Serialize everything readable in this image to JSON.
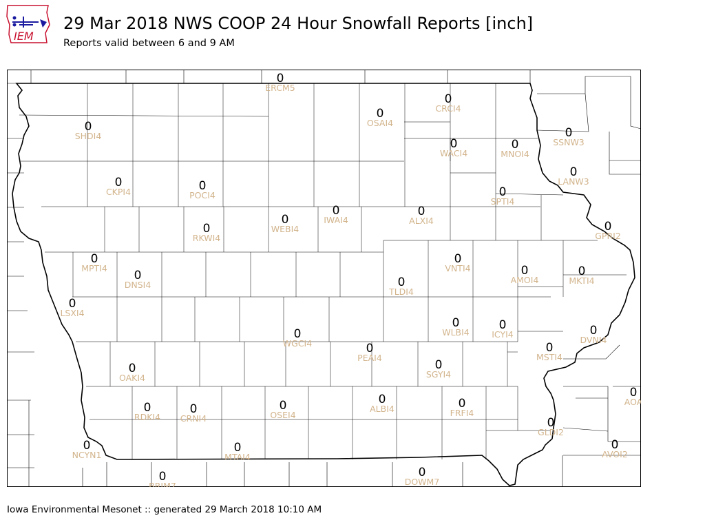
{
  "header": {
    "title": "29 Mar 2018 NWS COOP 24 Hour Snowfall Reports [inch]",
    "subtitle": "Reports valid between 6 and 9 AM"
  },
  "logo": {
    "text": "IEM"
  },
  "footer": {
    "text": "Iowa Environmental Mesonet :: generated 29 March 2018 10:10 AM"
  },
  "colors": {
    "value": "#000000",
    "station_label": "#d2b48c",
    "county_line": "#000000"
  },
  "stations": [
    {
      "id": "ERCM5",
      "value": "0"
    },
    {
      "id": "CRCI4",
      "value": "0"
    },
    {
      "id": "OSAI4",
      "value": "0"
    },
    {
      "id": "SHDI4",
      "value": "0"
    },
    {
      "id": "WACI4",
      "value": "0"
    },
    {
      "id": "MNOI4",
      "value": "0"
    },
    {
      "id": "SSNW3",
      "value": "0"
    },
    {
      "id": "LANW3",
      "value": "0"
    },
    {
      "id": "CKPI4",
      "value": "0"
    },
    {
      "id": "POCI4",
      "value": "0"
    },
    {
      "id": "SPTI4",
      "value": "0"
    },
    {
      "id": "IWAI4",
      "value": "0"
    },
    {
      "id": "ALXI4",
      "value": "0"
    },
    {
      "id": "WEBI4",
      "value": "0"
    },
    {
      "id": "RKWI4",
      "value": "0"
    },
    {
      "id": "GPRI2",
      "value": "0"
    },
    {
      "id": "MPTI4",
      "value": "0"
    },
    {
      "id": "VNTI4",
      "value": "0"
    },
    {
      "id": "DNSI4",
      "value": "0"
    },
    {
      "id": "AMOI4",
      "value": "0"
    },
    {
      "id": "MKTI4",
      "value": "0"
    },
    {
      "id": "TLDI4",
      "value": "0"
    },
    {
      "id": "LSXI4",
      "value": "0"
    },
    {
      "id": "WLBI4",
      "value": "0"
    },
    {
      "id": "ICYI4",
      "value": "0"
    },
    {
      "id": "WGCI4",
      "value": "0"
    },
    {
      "id": "DVNI4",
      "value": "0"
    },
    {
      "id": "PEAI4",
      "value": "0"
    },
    {
      "id": "MSTI4",
      "value": "0"
    },
    {
      "id": "OAKI4",
      "value": "0"
    },
    {
      "id": "SGYI4",
      "value": "0"
    },
    {
      "id": "AOA",
      "value": "0"
    },
    {
      "id": "ALBI4",
      "value": "0"
    },
    {
      "id": "RDKI4",
      "value": "0"
    },
    {
      "id": "CRNI4",
      "value": "0"
    },
    {
      "id": "OSEI4",
      "value": "0"
    },
    {
      "id": "FRFI4",
      "value": "0"
    },
    {
      "id": "GLDI2",
      "value": "0"
    },
    {
      "id": "NCYN1",
      "value": "0"
    },
    {
      "id": "AVOI2",
      "value": "0"
    },
    {
      "id": "MTAI4",
      "value": "0"
    },
    {
      "id": "DOWM7",
      "value": "0"
    },
    {
      "id": "BRIM7",
      "value": "0"
    }
  ]
}
